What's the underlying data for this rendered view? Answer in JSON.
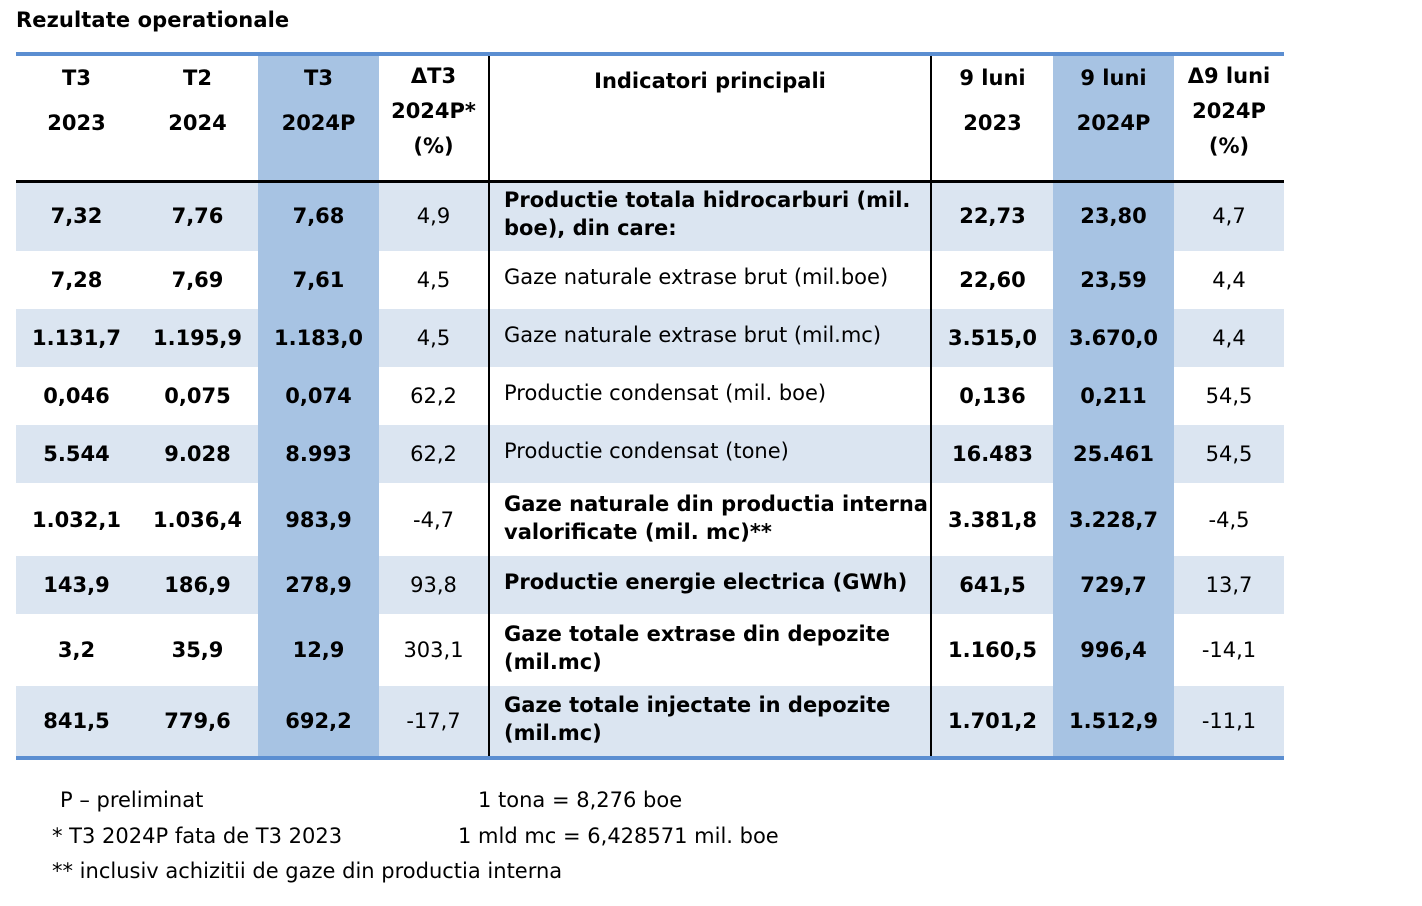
{
  "title": "Rezultate operationale",
  "headers": {
    "c1": [
      "T3",
      "2023"
    ],
    "c2": [
      "T2",
      "2024"
    ],
    "c3": [
      "T3",
      "2024P"
    ],
    "c4": [
      "ΔT3",
      "2024P*",
      "(%)"
    ],
    "indicator": "Indicatori principali",
    "c5": [
      "9 luni",
      "2023"
    ],
    "c6": [
      "9 luni",
      "2024P"
    ],
    "c7": [
      "Δ9 luni",
      "2024P",
      "(%)"
    ]
  },
  "rows": [
    {
      "c1": "7,32",
      "c2": "7,76",
      "c3": "7,68",
      "c4": "4,9",
      "ind": [
        "Productie totala hidrocarburi (mil.",
        "boe), din care:"
      ],
      "c5": "22,73",
      "c6": "23,80",
      "c7": "4,7"
    },
    {
      "c1": "7,28",
      "c2": "7,69",
      "c3": "7,61",
      "c4": "4,5",
      "ind": [
        "Gaze naturale extrase brut (mil.boe)"
      ],
      "c5": "22,60",
      "c6": "23,59",
      "c7": "4,4"
    },
    {
      "c1": "1.131,7",
      "c2": "1.195,9",
      "c3": "1.183,0",
      "c4": "4,5",
      "ind": [
        "Gaze naturale extrase brut (mil.mc)"
      ],
      "c5": "3.515,0",
      "c6": "3.670,0",
      "c7": "4,4"
    },
    {
      "c1": "0,046",
      "c2": "0,075",
      "c3": "0,074",
      "c4": "62,2",
      "ind": [
        "Productie condensat (mil. boe)"
      ],
      "c5": "0,136",
      "c6": "0,211",
      "c7": "54,5"
    },
    {
      "c1": "5.544",
      "c2": "9.028",
      "c3": "8.993",
      "c4": "62,2",
      "ind": [
        "Productie condensat (tone)"
      ],
      "c5": "16.483",
      "c6": "25.461",
      "c7": "54,5"
    },
    {
      "c1": "1.032,1",
      "c2": "1.036,4",
      "c3": "983,9",
      "c4": "-4,7",
      "ind": [
        "Gaze naturale din productia interna",
        "valorificate (mil. mc)**"
      ],
      "c5": "3.381,8",
      "c6": "3.228,7",
      "c7": "-4,5"
    },
    {
      "c1": "143,9",
      "c2": "186,9",
      "c3": "278,9",
      "c4": "93,8",
      "ind": [
        "Productie energie electrica (GWh)"
      ],
      "c5": "641,5",
      "c6": "729,7",
      "c7": "13,7"
    },
    {
      "c1": "3,2",
      "c2": "35,9",
      "c3": "12,9",
      "c4": "303,1",
      "ind": [
        "Gaze totale extrase din depozite",
        "(mil.mc)"
      ],
      "c5": "1.160,5",
      "c6": "996,4",
      "c7": "-14,1"
    },
    {
      "c1": "841,5",
      "c2": "779,6",
      "c3": "692,2",
      "c4": "-17,7",
      "ind": [
        "Gaze totale injectate in depozite",
        "(mil.mc)"
      ],
      "c5": "1.701,2",
      "c6": "1.512,9",
      "c7": "-11,1"
    }
  ],
  "footnotes": {
    "p": "P – preliminat",
    "star": "* T3 2024P fata de T3 2023",
    "dstar": "** inclusiv achizitii de gaze din productia interna",
    "tona": "1 tona = 8,276 boe",
    "mld": "1 mld mc = 6,428571 mil. boe"
  },
  "colors": {
    "accent": "#5b8ed1",
    "highlight": "#a7c3e3",
    "stripe": "#dbe5f1"
  }
}
